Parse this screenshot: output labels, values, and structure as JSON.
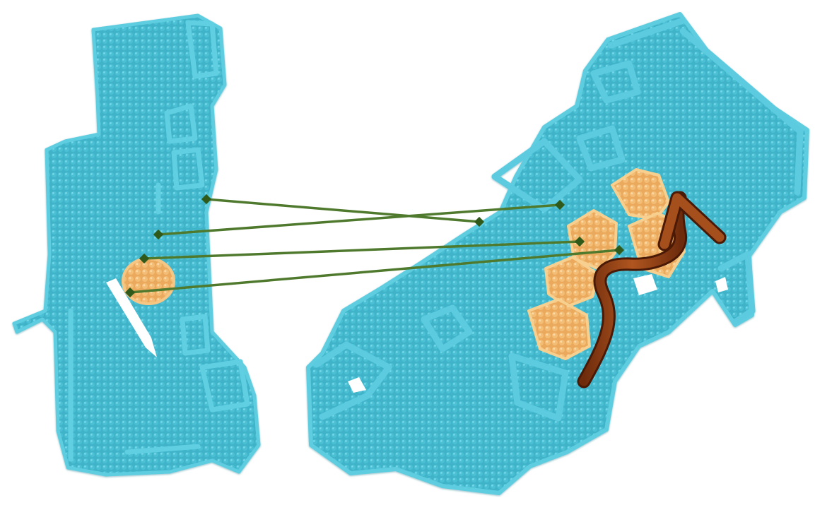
{
  "colors": {
    "background": "#ffffff",
    "cloud_fill": "#3fb3c9",
    "cloud_edge": "#63d0e3",
    "cloud_shadow": "#2a8fa3",
    "highlight_fill": "#f2b76a",
    "highlight_edge": "#f7cf8f",
    "match_line": "#4f7a2e",
    "match_node": "#2f5a1a",
    "trajectory_arrow": "#8a3b12"
  },
  "correspondences": [
    {
      "from": "left-cloud",
      "to": "right-cloud"
    },
    {
      "from": "left-cloud",
      "to": "right-cloud"
    },
    {
      "from": "left-cloud",
      "to": "right-cloud"
    },
    {
      "from": "left-cloud",
      "to": "right-cloud"
    },
    {
      "from": "left-cloud",
      "to": "right-cloud"
    }
  ],
  "icons": {
    "left_scan": "point-cloud-room-partial",
    "right_scan": "point-cloud-room-full",
    "highlight": "overlap-region",
    "trajectory": "trajectory-arrow-icon"
  }
}
